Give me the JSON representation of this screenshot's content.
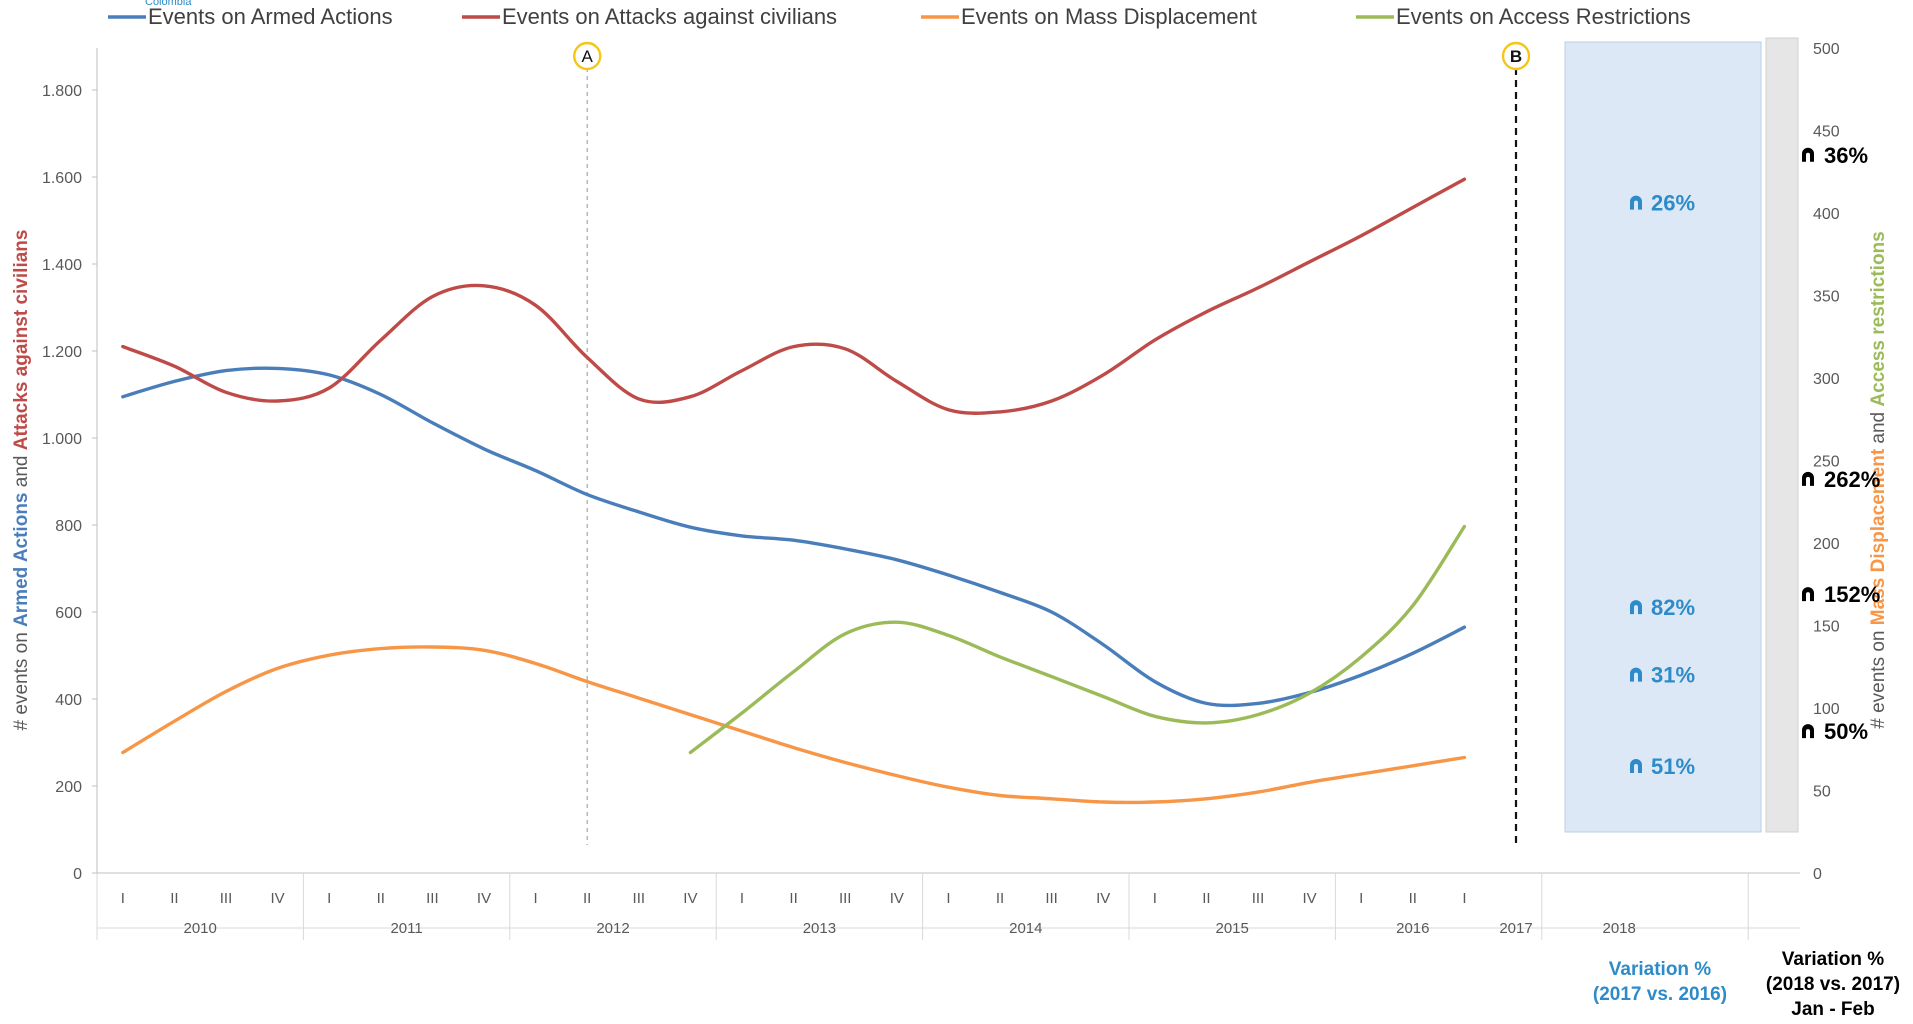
{
  "brand": {
    "caption": "Colombia"
  },
  "chart_data": {
    "type": "line",
    "legend_position": "top",
    "grid": false,
    "left_axis": {
      "label_parts": [
        {
          "text": "# events on ",
          "color": "#595959",
          "bold": false
        },
        {
          "text": "Armed Actions",
          "color": "#4a7ebb",
          "bold": true
        },
        {
          "text": " and ",
          "color": "#595959",
          "bold": false
        },
        {
          "text": "Attacks against civilians",
          "color": "#be4b48",
          "bold": true
        }
      ],
      "ylim": [
        0,
        1900
      ],
      "ticks": [
        0,
        200,
        400,
        600,
        800,
        1000,
        1200,
        1400,
        1600,
        1800
      ],
      "tick_labels": [
        "0",
        "200",
        "400",
        "600",
        "800",
        "1.000",
        "1.200",
        "1.400",
        "1.600",
        "1.800"
      ]
    },
    "right_axis": {
      "label_parts": [
        {
          "text": "# events on ",
          "color": "#595959",
          "bold": false
        },
        {
          "text": "Mass Displacement",
          "color": "#f79646",
          "bold": true
        },
        {
          "text": " and ",
          "color": "#595959",
          "bold": false
        },
        {
          "text": "Access restrictions",
          "color": "#9bbb59",
          "bold": true
        }
      ],
      "ylim": [
        0,
        500
      ],
      "ticks": [
        0,
        50,
        100,
        150,
        200,
        250,
        300,
        350,
        400,
        450,
        500
      ],
      "tick_labels": [
        "0",
        "50",
        "100",
        "150",
        "200",
        "250",
        "300",
        "350",
        "400",
        "450",
        "500"
      ]
    },
    "years": [
      "2010",
      "2011",
      "2012",
      "2013",
      "2014",
      "2015",
      "2016",
      "2017",
      "2018"
    ],
    "quarters": [
      "I",
      "II",
      "III",
      "IV"
    ],
    "x_last_quarter_2018": "I",
    "series": [
      {
        "name": "Events on Armed Actions",
        "color": "#4a7ebb",
        "axis": "left",
        "values": [
          1095,
          1130,
          1155,
          1160,
          1145,
          1100,
          1035,
          975,
          925,
          870,
          830,
          795,
          775,
          765,
          745,
          720,
          685,
          645,
          600,
          525,
          440,
          390,
          390,
          415,
          455,
          505,
          565
        ]
      },
      {
        "name": "Events on Attacks against civilians",
        "color": "#be4b48",
        "axis": "left",
        "values": [
          1210,
          1165,
          1105,
          1085,
          1115,
          1225,
          1325,
          1350,
          1305,
          1185,
          1090,
          1095,
          1155,
          1210,
          1205,
          1130,
          1065,
          1060,
          1085,
          1145,
          1225,
          1290,
          1345,
          1405,
          1465,
          1530,
          1595
        ]
      },
      {
        "name": "Events on Mass Displacement",
        "color": "#f79646",
        "axis": "right",
        "values": [
          73,
          92,
          110,
          124,
          132,
          136,
          137,
          135,
          127,
          116,
          106,
          96,
          86,
          76,
          67,
          59,
          52,
          47,
          45,
          43,
          43,
          45,
          49,
          55,
          60,
          65,
          70
        ]
      },
      {
        "name": "Events on Access Restrictions",
        "color": "#9bbb59",
        "axis": "right",
        "values": [
          null,
          null,
          null,
          null,
          null,
          null,
          null,
          null,
          null,
          null,
          null,
          73,
          97,
          122,
          145,
          152,
          144,
          131,
          119,
          107,
          95,
          91,
          96,
          109,
          131,
          162,
          210
        ]
      }
    ],
    "markers": [
      {
        "label": "A",
        "quarter_index": 9.5,
        "style": "light-dashed"
      },
      {
        "label": "B",
        "quarter_index": 27.5,
        "style": "bold-dashed"
      }
    ],
    "variation_2017": {
      "caption_line1": "Variation %",
      "caption_line2": "(2017 vs. 2016)",
      "color": "#2e8bc9",
      "labels": [
        {
          "series": "Events on Attacks against civilians",
          "value": "26%",
          "left_value": 1525
        },
        {
          "series": "Events on Armed Actions",
          "value": "82%",
          "left_value": 595
        },
        {
          "series": "Events on Access Restrictions",
          "value": "31%",
          "left_value": 440
        },
        {
          "series": "Events on Mass Displacement",
          "value": "51%",
          "left_value": 230
        }
      ]
    },
    "variation_2018": {
      "caption_line1": "Variation %",
      "caption_line2": "(2018 vs. 2017)",
      "caption_line3": "Jan - Feb",
      "color": "#000000",
      "labels": [
        {
          "series": "Events on Attacks against civilians",
          "value": "36%",
          "left_value": 1635
        },
        {
          "series": "Events on Access Restrictions",
          "value": "262%",
          "left_value": 890
        },
        {
          "series": "Events on Armed Actions",
          "value": "152%",
          "left_value": 625
        },
        {
          "series": "Events on Mass Displacement",
          "value": "50%",
          "left_value": 310
        }
      ]
    }
  }
}
